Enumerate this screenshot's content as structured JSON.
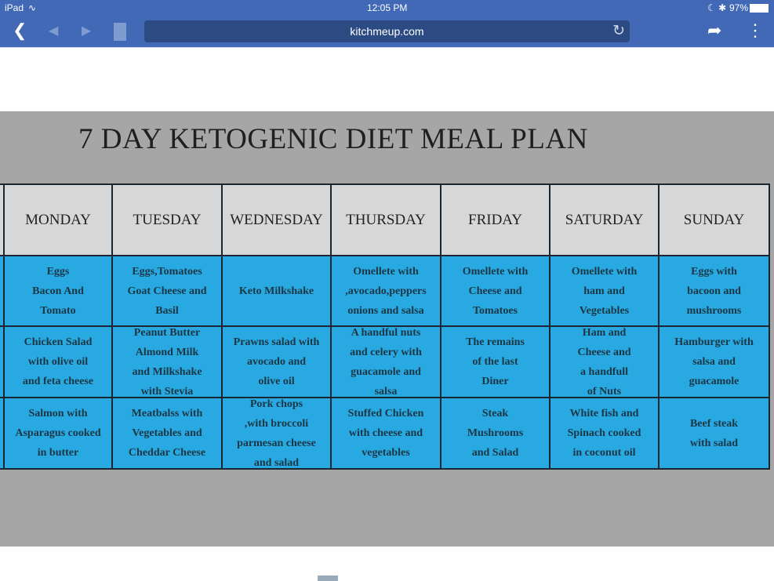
{
  "status_bar": {
    "device": "iPad",
    "time": "12:05 PM",
    "battery": "97%"
  },
  "browser": {
    "url": "kitchmeup.com",
    "icons": [
      "back-icon",
      "history-back-icon",
      "history-forward-icon",
      "bookmark-icon",
      "reload-icon",
      "share-icon",
      "more-icon"
    ]
  },
  "image": {
    "title": "7 DAY KETOGENIC DIET MEAL PLAN",
    "days": [
      "MONDAY",
      "TUESDAY",
      "WEDNESDAY",
      "THURSDAY",
      "FRIDAY",
      "SATURDAY",
      "SUNDAY"
    ],
    "rows": [
      [
        "Eggs\nBacon And\nTomato",
        "Eggs,Tomatoes\nGoat Cheese and\nBasil",
        "Keto Milkshake",
        "Omellete with\n,avocado,peppers\nonions and salsa",
        "Omellete with\nCheese and\nTomatoes",
        "Omellete with\nham and\nVegetables",
        "Eggs with\nbacoon and\nmushrooms"
      ],
      [
        "Chicken Salad\nwith olive oil\nand feta cheese",
        "Peanut Butter\nAlmond Milk\nand Milkshake\nwith Stevia",
        "Prawns salad with\navocado and\nolive oil",
        "A handful nuts\nand celery with\nguacamole and\nsalsa",
        "The remains\nof the last\nDiner",
        "Ham and\nCheese and\na handfull\nof Nuts",
        "Hamburger with\nsalsa and\nguacamole"
      ],
      [
        "Salmon with\nAsparagus cooked\nin butter",
        "Meatbalss with\nVegetables and\nCheddar Cheese",
        "Pork chops\n,with broccoli\nparmesan cheese\nand salad",
        "Stuffed Chicken\nwith cheese and\nvegetables",
        "Steak\nMushrooms\nand Salad",
        "White fish and\nSpinach cooked\nin coconut oil",
        "Beef steak\nwith salad"
      ]
    ]
  },
  "colors": {
    "browser_bar": "#4169b6",
    "header_cell": "#d7d7d7",
    "meal_cell": "#29a9e1",
    "background": "#a6a6a6"
  }
}
